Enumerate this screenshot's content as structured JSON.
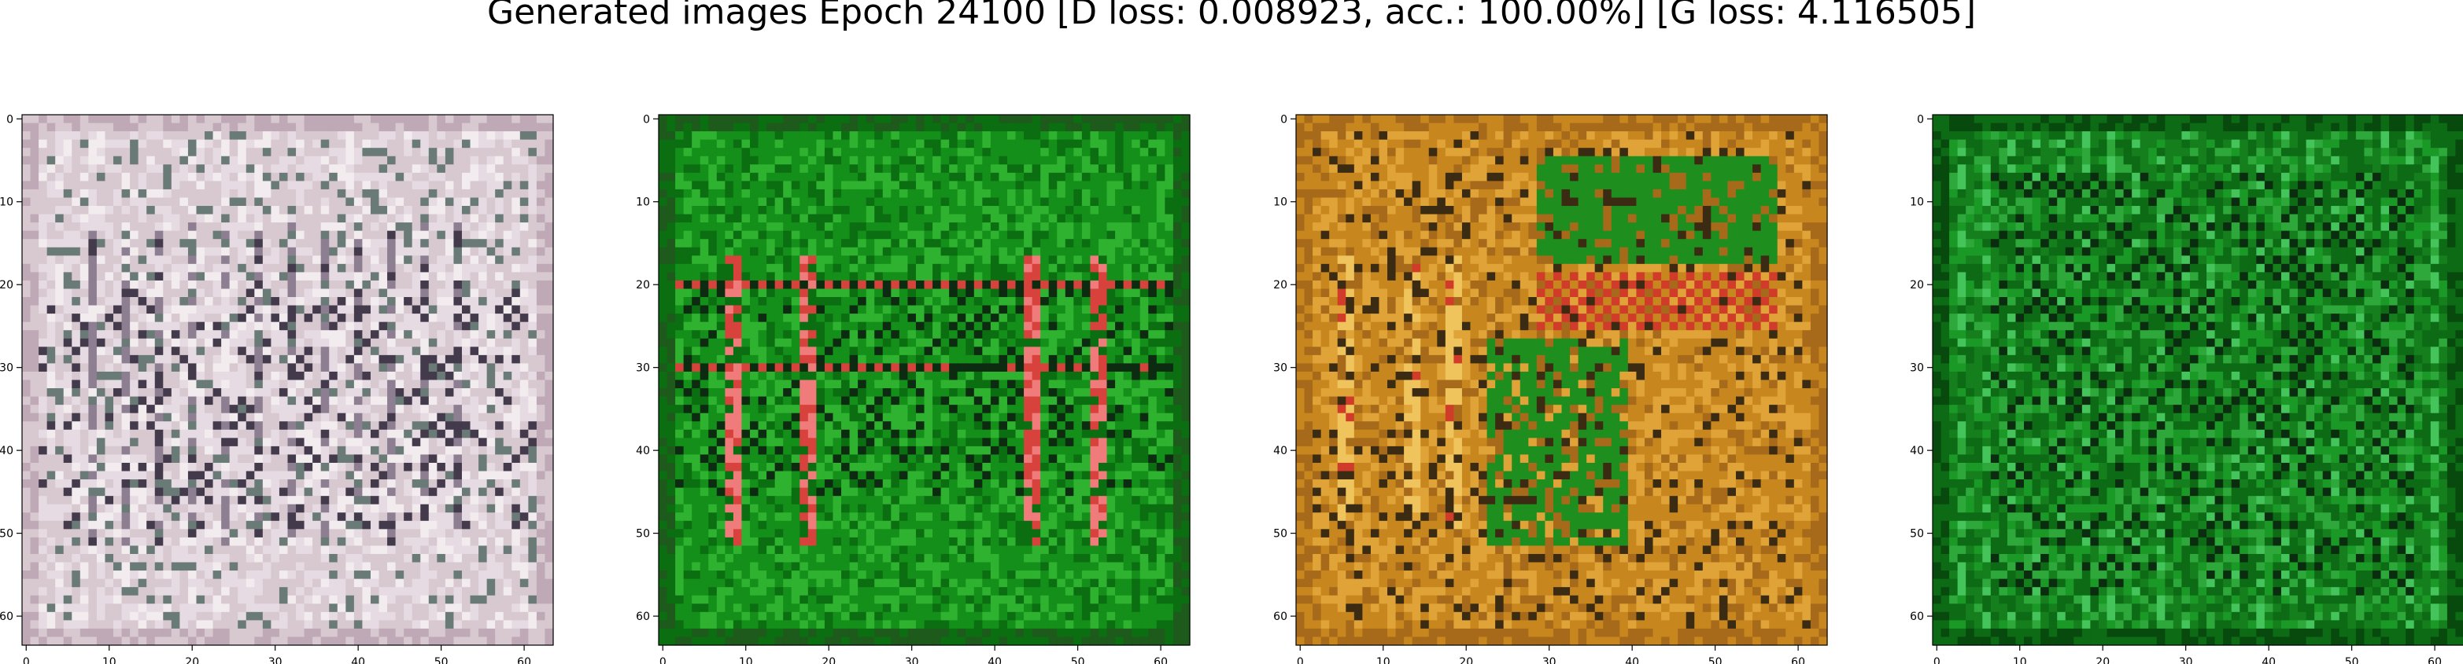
{
  "figure": {
    "suptitle": "Generated images Epoch 24100 [D loss: 0.008923, acc.: 100.00%] [G loss: 4.116505]",
    "background_color": "#ffffff"
  },
  "chart_data": [
    {
      "type": "heatmap",
      "name": "generated-image-1",
      "description_palette": [
        "#d8c8cf",
        "#e7dbe3",
        "#bfa9b6",
        "#f2ecef",
        "#8d7f91",
        "#433a4c",
        "#6a7b77"
      ],
      "grid_size": [
        64,
        64
      ],
      "xlim": [
        -0.5,
        63.5
      ],
      "ylim": [
        63.5,
        -0.5
      ],
      "xticks": [
        0,
        10,
        20,
        30,
        40,
        50,
        60
      ],
      "yticks": [
        0,
        10,
        20,
        30,
        40,
        50,
        60
      ],
      "xtick_labels": [
        "0",
        "10",
        "20",
        "30",
        "40",
        "50",
        "60"
      ],
      "ytick_labels": [
        "0",
        "10",
        "20",
        "30",
        "40",
        "50",
        "60"
      ]
    },
    {
      "type": "heatmap",
      "name": "generated-image-2",
      "description_palette": [
        "#138f1a",
        "#0b6f12",
        "#2fb22f",
        "#1d5a1b",
        "#d7423c",
        "#f07b7b",
        "#0c2b10"
      ],
      "grid_size": [
        64,
        64
      ],
      "xlim": [
        -0.5,
        63.5
      ],
      "ylim": [
        63.5,
        -0.5
      ],
      "xticks": [
        0,
        10,
        20,
        30,
        40,
        50,
        60
      ],
      "yticks": [
        0,
        10,
        20,
        30,
        40,
        50,
        60
      ],
      "xtick_labels": [
        "0",
        "10",
        "20",
        "30",
        "40",
        "50",
        "60"
      ],
      "ytick_labels": [
        "0",
        "10",
        "20",
        "30",
        "40",
        "50",
        "60"
      ]
    },
    {
      "type": "heatmap",
      "name": "generated-image-3",
      "description_palette": [
        "#c8871e",
        "#e0a338",
        "#a76a1a",
        "#f0c45c",
        "#d13b2a",
        "#1e8f1e",
        "#3b2b12"
      ],
      "grid_size": [
        64,
        64
      ],
      "xlim": [
        -0.5,
        63.5
      ],
      "ylim": [
        63.5,
        -0.5
      ],
      "xticks": [
        0,
        10,
        20,
        30,
        40,
        50,
        60
      ],
      "yticks": [
        0,
        10,
        20,
        30,
        40,
        50,
        60
      ],
      "xtick_labels": [
        "0",
        "10",
        "20",
        "30",
        "40",
        "50",
        "60"
      ],
      "ytick_labels": [
        "0",
        "10",
        "20",
        "30",
        "40",
        "50",
        "60"
      ]
    },
    {
      "type": "heatmap",
      "name": "generated-image-4",
      "description_palette": [
        "#157f1d",
        "#0c6b14",
        "#2ea83a",
        "#084a0e",
        "#44c45a",
        "#0a2d0f",
        "#1b9926"
      ],
      "grid_size": [
        64,
        64
      ],
      "xlim": [
        -0.5,
        63.5
      ],
      "ylim": [
        63.5,
        -0.5
      ],
      "xticks": [
        0,
        10,
        20,
        30,
        40,
        50,
        60
      ],
      "yticks": [
        0,
        10,
        20,
        30,
        40,
        50,
        60
      ],
      "xtick_labels": [
        "0",
        "10",
        "20",
        "30",
        "40",
        "50",
        "60"
      ],
      "ytick_labels": [
        "0",
        "10",
        "20",
        "30",
        "40",
        "50",
        "60"
      ]
    }
  ]
}
